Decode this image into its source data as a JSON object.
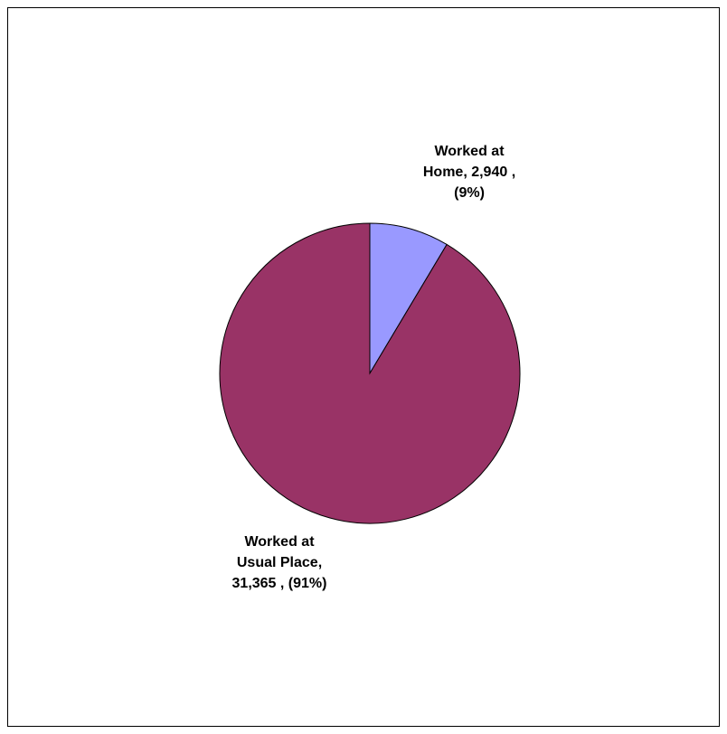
{
  "chart_data": {
    "type": "pie",
    "title": "",
    "slices": [
      {
        "name": "Worked at Home",
        "value": 2940,
        "percent": 9,
        "color": "#9999ff",
        "label_lines": [
          "Worked at",
          "Home,  2,940 ,",
          "(9%)"
        ]
      },
      {
        "name": "Worked at Usual Place",
        "value": 31365,
        "percent": 91,
        "color": "#993366",
        "label_lines": [
          "Worked at",
          "Usual Place,",
          "31,365 , (91%)"
        ]
      }
    ],
    "legend": "none",
    "border_color": "#000000"
  }
}
